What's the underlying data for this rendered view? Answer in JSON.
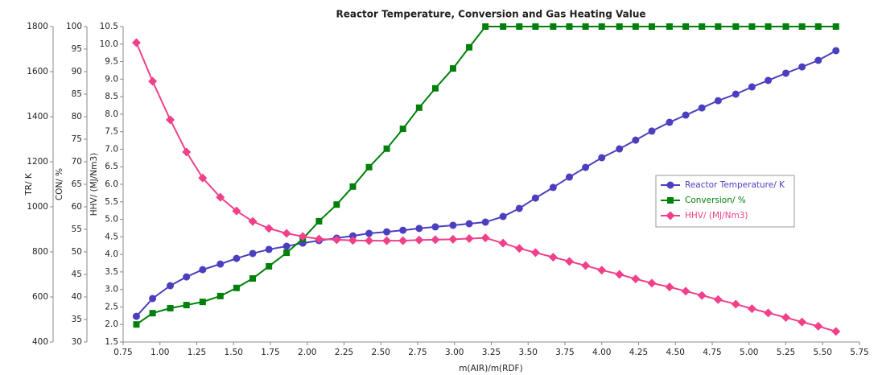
{
  "chart_data": {
    "type": "line",
    "title": "Reactor Temperature, Conversion and Gas Heating Value",
    "x_label": "m(AIR)/m(RDF)",
    "y_label": "TR/ K",
    "y2_label": "CON/ %",
    "y3_label": "HHV/ (MJ/Nm3)",
    "x": [
      0.84,
      0.95,
      1.07,
      1.18,
      1.29,
      1.41,
      1.52,
      1.63,
      1.74,
      1.86,
      1.97,
      2.08,
      2.2,
      2.31,
      2.42,
      2.54,
      2.65,
      2.76,
      2.87,
      2.99,
      3.1,
      3.21,
      3.33,
      3.44,
      3.55,
      3.67,
      3.78,
      3.89,
      4.0,
      4.12,
      4.23,
      4.34,
      4.46,
      4.57,
      4.68,
      4.79,
      4.91,
      5.02,
      5.13,
      5.25,
      5.36,
      5.47,
      5.59
    ],
    "xlim": [
      0.75,
      5.75
    ],
    "xticks": [
      0.75,
      {
        "value": 1,
        "label": "1.00"
      },
      1.25,
      {
        "value": 1.5,
        "label": "1.50"
      },
      1.75,
      {
        "value": 2,
        "label": "2.00"
      },
      2.25,
      {
        "value": 2.5,
        "label": "2.50"
      },
      2.75,
      {
        "value": 3,
        "label": "3.00"
      },
      3.25,
      {
        "value": 3.5,
        "label": "3.50"
      },
      3.75,
      {
        "value": 4,
        "label": "4.00"
      },
      4.25,
      {
        "value": 4.5,
        "label": "4.50"
      },
      4.75,
      {
        "value": 5,
        "label": "5.00"
      },
      5.25,
      {
        "value": 5.5,
        "label": "5.50"
      },
      5.75
    ],
    "ylim": [
      400,
      1800
    ],
    "yticks": [
      400,
      600,
      800,
      1000,
      1200,
      1400,
      1600,
      1800
    ],
    "y2lim": [
      30,
      100
    ],
    "y2ticks": [
      30,
      35,
      40,
      45,
      50,
      55,
      60,
      65,
      70,
      75,
      80,
      85,
      90,
      95,
      100
    ],
    "y3lim": [
      1.5,
      10.5
    ],
    "y3ticks": [
      1.5,
      {
        "value": 2,
        "label": "2.0"
      },
      2.5,
      {
        "value": 3,
        "label": "3.0"
      },
      3.5,
      {
        "value": 4,
        "label": "4.0"
      },
      4.5,
      {
        "value": 5,
        "label": "5.0"
      },
      5.5,
      {
        "value": 6,
        "label": "6.0"
      },
      6.5,
      {
        "value": 7,
        "label": "7.0"
      },
      7.5,
      {
        "value": 8,
        "label": "8.0"
      },
      8.5,
      {
        "value": 9,
        "label": "9.0"
      },
      9.5,
      {
        "value": 10,
        "label": "10.0"
      },
      10.5
    ],
    "legend": "right",
    "series": [
      {
        "name": "Reactor Temperature/ K",
        "color": "#4b3fc0",
        "marker": "circle",
        "axis": "y",
        "values": [
          514,
          593,
          650,
          689,
          721,
          746,
          771,
          793,
          811,
          825,
          839,
          850,
          861,
          871,
          882,
          889,
          896,
          904,
          911,
          918,
          925,
          932,
          957,
          993,
          1039,
          1086,
          1132,
          1175,
          1218,
          1257,
          1296,
          1336,
          1375,
          1407,
          1439,
          1471,
          1500,
          1532,
          1561,
          1593,
          1621,
          1650,
          1693
        ]
      },
      {
        "name": "Conversion/ %",
        "color": "#00800a",
        "marker": "square",
        "axis": "y2",
        "values": [
          33.9,
          36.4,
          37.5,
          38.2,
          38.9,
          40.2,
          42.0,
          44.1,
          46.8,
          49.8,
          52.9,
          56.8,
          60.5,
          64.5,
          68.8,
          72.9,
          77.3,
          82.0,
          86.3,
          90.7,
          95.4,
          100,
          100,
          100,
          100,
          100,
          100,
          100,
          100,
          100,
          100,
          100,
          100,
          100,
          100,
          100,
          100,
          100,
          100,
          100,
          100,
          100,
          100
        ]
      },
      {
        "name": "HHV/ (MJ/Nm3)",
        "color": "#f0408a",
        "marker": "diamond",
        "axis": "y3",
        "values": [
          10.04,
          8.94,
          7.84,
          6.92,
          6.18,
          5.63,
          5.24,
          4.94,
          4.74,
          4.6,
          4.51,
          4.44,
          4.42,
          4.4,
          4.39,
          4.39,
          4.39,
          4.41,
          4.42,
          4.43,
          4.45,
          4.47,
          4.32,
          4.17,
          4.05,
          3.92,
          3.8,
          3.68,
          3.55,
          3.43,
          3.3,
          3.18,
          3.07,
          2.95,
          2.83,
          2.71,
          2.58,
          2.45,
          2.33,
          2.2,
          2.07,
          1.95,
          1.8
        ]
      }
    ]
  }
}
